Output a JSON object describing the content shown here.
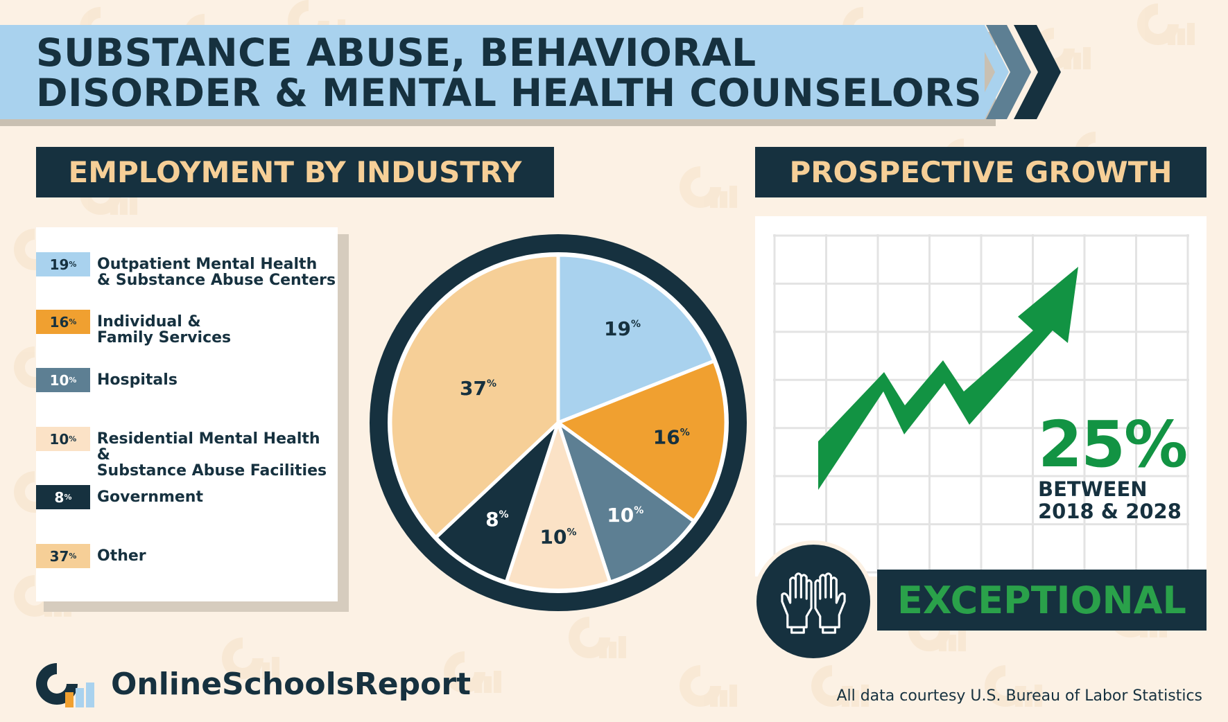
{
  "title": {
    "line1": "SUBSTANCE ABUSE, BEHAVIORAL",
    "line2": "DISORDER & MENTAL HEALTH COUNSELORS"
  },
  "employment": {
    "header": "EMPLOYMENT BY INDUSTRY"
  },
  "growth": {
    "header": "PROSPECTIVE GROWTH",
    "value": "25%",
    "subtitle": "BETWEEN\n2018 & 2028",
    "outlook": "EXCEPTIONAL"
  },
  "chart_data": {
    "type": "pie",
    "start": "12 o'clock, clockwise",
    "series": [
      {
        "name": "Outpatient Mental Health\n& Substance Abuse Centers",
        "value": 19,
        "color": "#a9d2ee"
      },
      {
        "name": "Individual &\nFamily Services",
        "value": 16,
        "color": "#f0a030"
      },
      {
        "name": "Hospitals",
        "value": 10,
        "color": "#5d7f93"
      },
      {
        "name": "Residential Mental Health &\nSubstance Abuse Facilities",
        "value": 10,
        "color": "#fbe2c6"
      },
      {
        "name": "Government",
        "value": 8,
        "color": "#16313f"
      },
      {
        "name": "Other",
        "value": 37,
        "color": "#f6cf97"
      }
    ],
    "label_suffix": "%"
  },
  "colors": {
    "background": "#fcf1e4",
    "navy": "#16313f",
    "light_blue": "#a9d2ee",
    "green": "#129343",
    "peach": "#f6cf97"
  },
  "icons": {
    "hands": "raised-hands-icon",
    "logo": "online-schools-report-logo-icon"
  },
  "footer": {
    "brand": "OnlineSchoolsReport",
    "source": "All data courtesy U.S. Bureau of Labor Statistics"
  }
}
